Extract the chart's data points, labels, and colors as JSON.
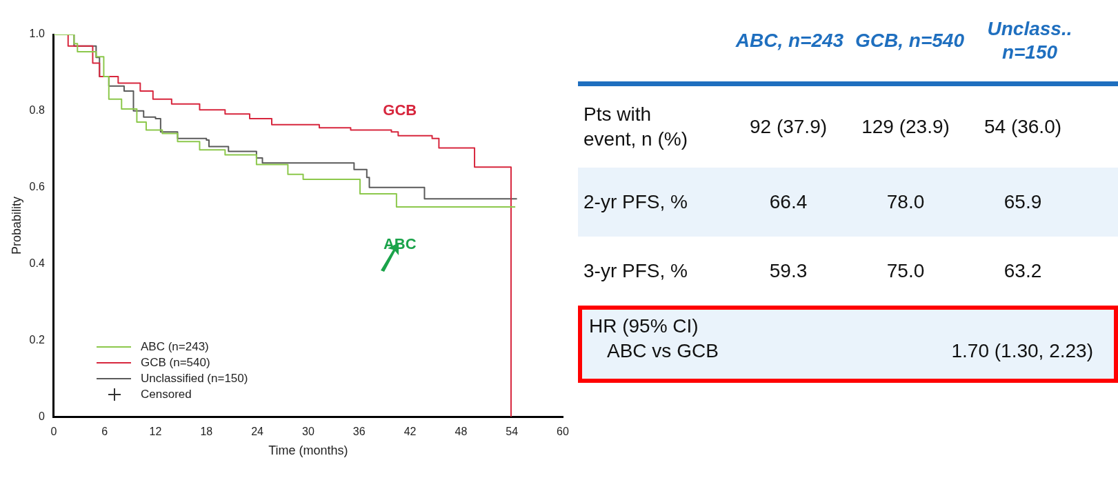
{
  "chart_data": [
    {
      "type": "step",
      "xlabel": "Time (months)",
      "ylabel": "Probability",
      "xlim": [
        0,
        60
      ],
      "xticks": [
        0,
        6,
        12,
        18,
        24,
        30,
        36,
        42,
        48,
        54,
        60
      ],
      "ylim": [
        0,
        1
      ],
      "yticks": [
        0,
        0.2,
        0.4,
        0.6,
        0.8,
        {
          "value": 1,
          "label": "1.0"
        }
      ],
      "grid": false,
      "legend": "bottom left",
      "series": [
        {
          "name": "ABC (n=243)",
          "color": "#8cc84b",
          "x": [
            0,
            2.4,
            2.8,
            5,
            5.9,
            6.5,
            8,
            9.8,
            10.9,
            12.8,
            14.6,
            17.2,
            20.2,
            23.9,
            27.6,
            29.4,
            35.4,
            36.1,
            39.8,
            40.4,
            54.4
          ],
          "values": [
            1,
            0.976,
            0.955,
            0.942,
            0.89,
            0.831,
            0.805,
            0.771,
            0.75,
            0.741,
            0.72,
            0.698,
            0.685,
            0.66,
            0.634,
            0.621,
            0.621,
            0.583,
            0.583,
            0.549,
            0.549
          ]
        },
        {
          "name": "GCB (n=540)",
          "color": "#d7263d",
          "x": [
            0,
            1.7,
            4.6,
            5.4,
            7.6,
            10.2,
            11.7,
            13.9,
            17.2,
            20.2,
            23.1,
            25.7,
            31.3,
            35,
            39.8,
            40.6,
            44.6,
            45.4,
            49.4,
            49.6,
            53.9,
            53.9
          ],
          "values": [
            1,
            0.97,
            0.925,
            0.89,
            0.873,
            0.852,
            0.831,
            0.818,
            0.803,
            0.792,
            0.78,
            0.764,
            0.756,
            0.75,
            0.745,
            0.735,
            0.728,
            0.703,
            0.703,
            0.653,
            0.653,
            0
          ]
        },
        {
          "name": "Unclassified (n=150)",
          "color": "#5a5a5a",
          "x": [
            0,
            2.4,
            5,
            5.4,
            6.5,
            8.3,
            9.4,
            10.6,
            12,
            12.6,
            14.6,
            18,
            18.3,
            20.6,
            23.9,
            24.6,
            34.3,
            35.4,
            36.9,
            37.2,
            43.5,
            43.7,
            54.6
          ],
          "values": [
            1,
            0.97,
            0.94,
            0.89,
            0.865,
            0.852,
            0.8,
            0.784,
            0.78,
            0.745,
            0.728,
            0.724,
            0.707,
            0.694,
            0.677,
            0.664,
            0.664,
            0.647,
            0.626,
            0.6,
            0.6,
            0.57,
            0.57
          ]
        }
      ],
      "annotations": [
        "ABC",
        "GCB",
        "Censored"
      ]
    },
    {
      "type": "other",
      "categories": [
        "ABC, n=243",
        "GCB, n=540",
        "Unclass.. n=150"
      ],
      "y_categories": [
        "Pts with event, n (%)",
        "2-yr PFS, %",
        "3-yr PFS, %",
        "HR (95% CI)"
      ],
      "cell_labels": [
        [
          "92 (37.9)",
          "129 (23.9)",
          "54 (36.0)"
        ],
        [
          "66.4",
          "78.0",
          "65.9"
        ],
        [
          "59.3",
          "75.0",
          "63.2"
        ],
        [
          null,
          null,
          null
        ]
      ],
      "annotations": [
        "ABC vs GCB",
        "1.70 (1.30, 2.23)"
      ]
    }
  ]
}
